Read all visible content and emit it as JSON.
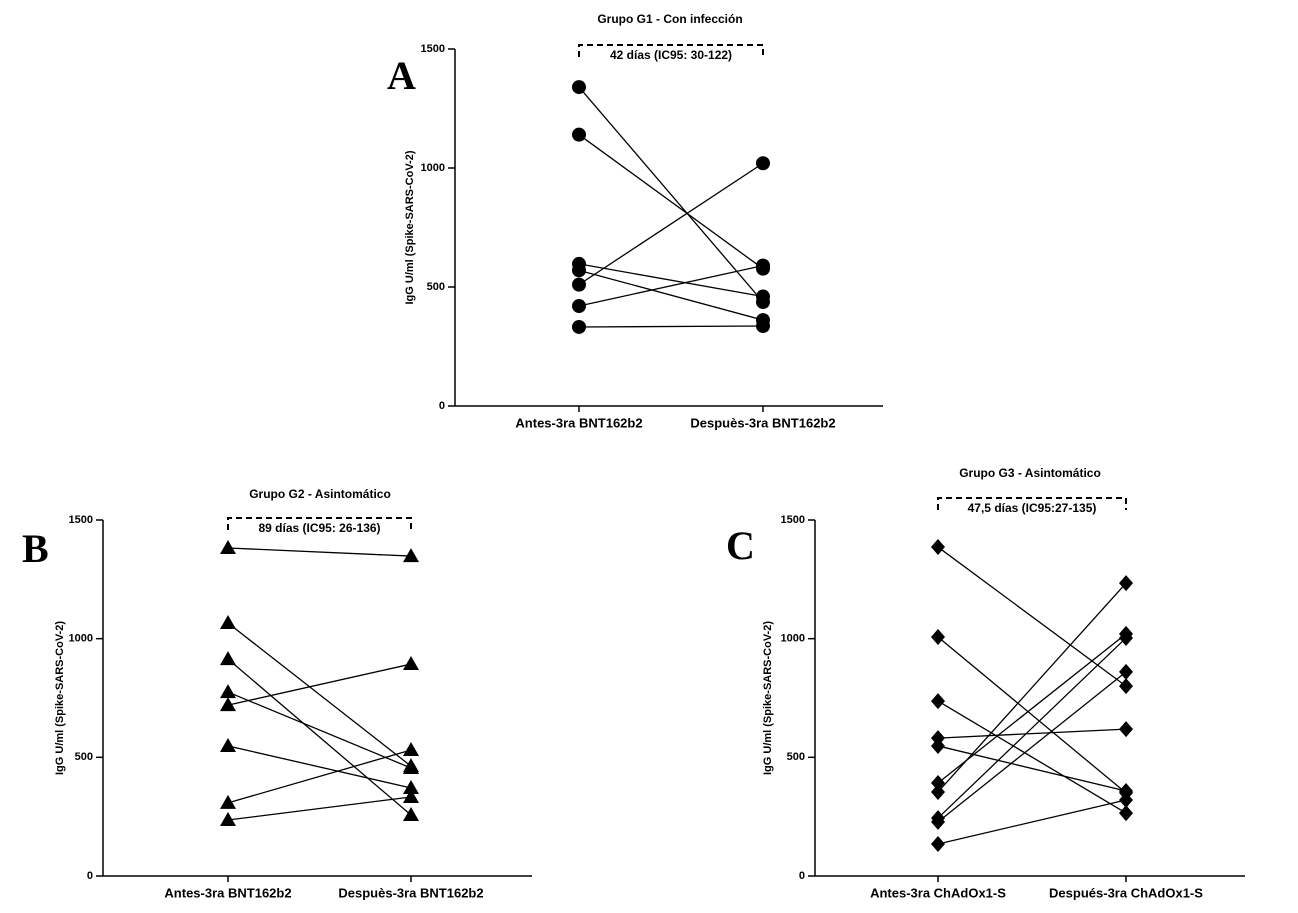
{
  "chart_data": [
    {
      "type": "paired",
      "panel_label": "A",
      "title": "Grupo G1 - Con infección",
      "y_label": "IgG U/ml (Spike-SARS-CoV-2)",
      "annotation": "42 días (IC95: 30-122)",
      "marker": "circle",
      "color": "#000000",
      "categories": [
        "Antes-3ra BNT162b2",
        "Despuès-3ra BNT162b2"
      ],
      "ylim": [
        0,
        1500
      ],
      "yticks": [
        0,
        500,
        1000,
        1500
      ],
      "series": [
        {
          "values": [
            1340,
            437
          ]
        },
        {
          "values": [
            1140,
            577
          ]
        },
        {
          "values": [
            597,
            460
          ]
        },
        {
          "values": [
            570,
            361
          ]
        },
        {
          "values": [
            510,
            1020
          ]
        },
        {
          "values": [
            420,
            590
          ]
        },
        {
          "values": [
            332,
            336
          ]
        }
      ]
    },
    {
      "type": "paired",
      "panel_label": "B",
      "title": "Grupo G2 - Asintomático",
      "y_label": "IgG U/ml (Spike-SARS-CoV-2)",
      "annotation": "89 días (IC95: 26-136)",
      "marker": "triangle",
      "color": "#000000",
      "categories": [
        "Antes-3ra BNT162b2",
        "Despuès-3ra BNT162b2"
      ],
      "ylim": [
        0,
        1500
      ],
      "yticks": [
        0,
        500,
        1000,
        1500
      ],
      "series": [
        {
          "values": [
            1382,
            1348
          ]
        },
        {
          "values": [
            1066,
            463
          ]
        },
        {
          "values": [
            914,
            257
          ]
        },
        {
          "values": [
            775,
            455
          ]
        },
        {
          "values": [
            720,
            893
          ]
        },
        {
          "values": [
            548,
            371
          ]
        },
        {
          "values": [
            308,
            531
          ]
        },
        {
          "values": [
            236,
            333
          ]
        }
      ]
    },
    {
      "type": "paired",
      "panel_label": "C",
      "title": "Grupo G3 - Asintomático",
      "y_label": "IgG U/ml (Spike-SARS-CoV-2)",
      "annotation": "47,5 días (IC95:27-135)",
      "marker": "diamond",
      "color": "#000000",
      "categories": [
        "Antes-3ra ChAdOx1-S",
        "Después-3ra ChAdOx1-S"
      ],
      "ylim": [
        0,
        1500
      ],
      "yticks": [
        0,
        500,
        1000,
        1500
      ],
      "series": [
        {
          "values": [
            1386,
            800
          ]
        },
        {
          "values": [
            1007,
            350
          ]
        },
        {
          "values": [
            737,
            265
          ]
        },
        {
          "values": [
            581,
            619
          ]
        },
        {
          "values": [
            548,
            358
          ]
        },
        {
          "values": [
            392,
            1020
          ]
        },
        {
          "values": [
            354,
            1234
          ]
        },
        {
          "values": [
            244,
            1003
          ]
        },
        {
          "values": [
            228,
            860
          ]
        },
        {
          "values": [
            135,
            320
          ]
        }
      ]
    }
  ]
}
